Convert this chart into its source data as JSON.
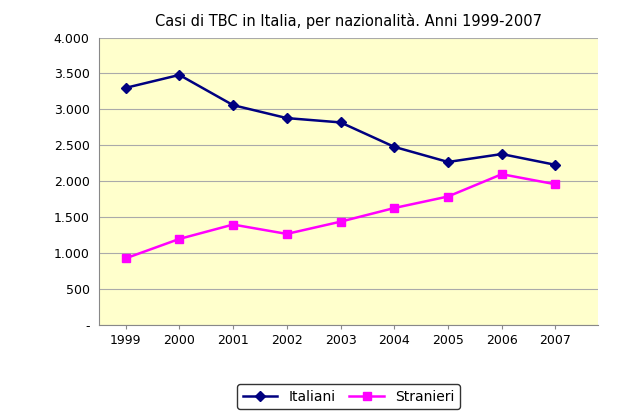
{
  "title": "Casi di TBC in Italia, per nazionalità. Anni 1999-2007",
  "years": [
    1999,
    2000,
    2001,
    2002,
    2003,
    2004,
    2005,
    2006,
    2007
  ],
  "italiani": [
    3300,
    3480,
    3060,
    2880,
    2820,
    2480,
    2270,
    2380,
    2230
  ],
  "stranieri": [
    930,
    1200,
    1400,
    1270,
    1440,
    1630,
    1790,
    2100,
    1960
  ],
  "italiani_color": "#000080",
  "stranieri_color": "#FF00FF",
  "plot_bg_color": "#FFFFCC",
  "fig_bg_color": "#FFFFFF",
  "ylim": [
    0,
    4000
  ],
  "yticks": [
    0,
    500,
    1000,
    1500,
    2000,
    2500,
    3000,
    3500,
    4000
  ],
  "ytick_labels": [
    "-",
    "500",
    "1.000",
    "1.500",
    "2.000",
    "2.500",
    "3.000",
    "3.500",
    "4.000"
  ],
  "legend_italiani": "Italiani",
  "legend_stranieri": "Stranieri",
  "title_fontsize": 10.5,
  "tick_fontsize": 9,
  "legend_fontsize": 10
}
